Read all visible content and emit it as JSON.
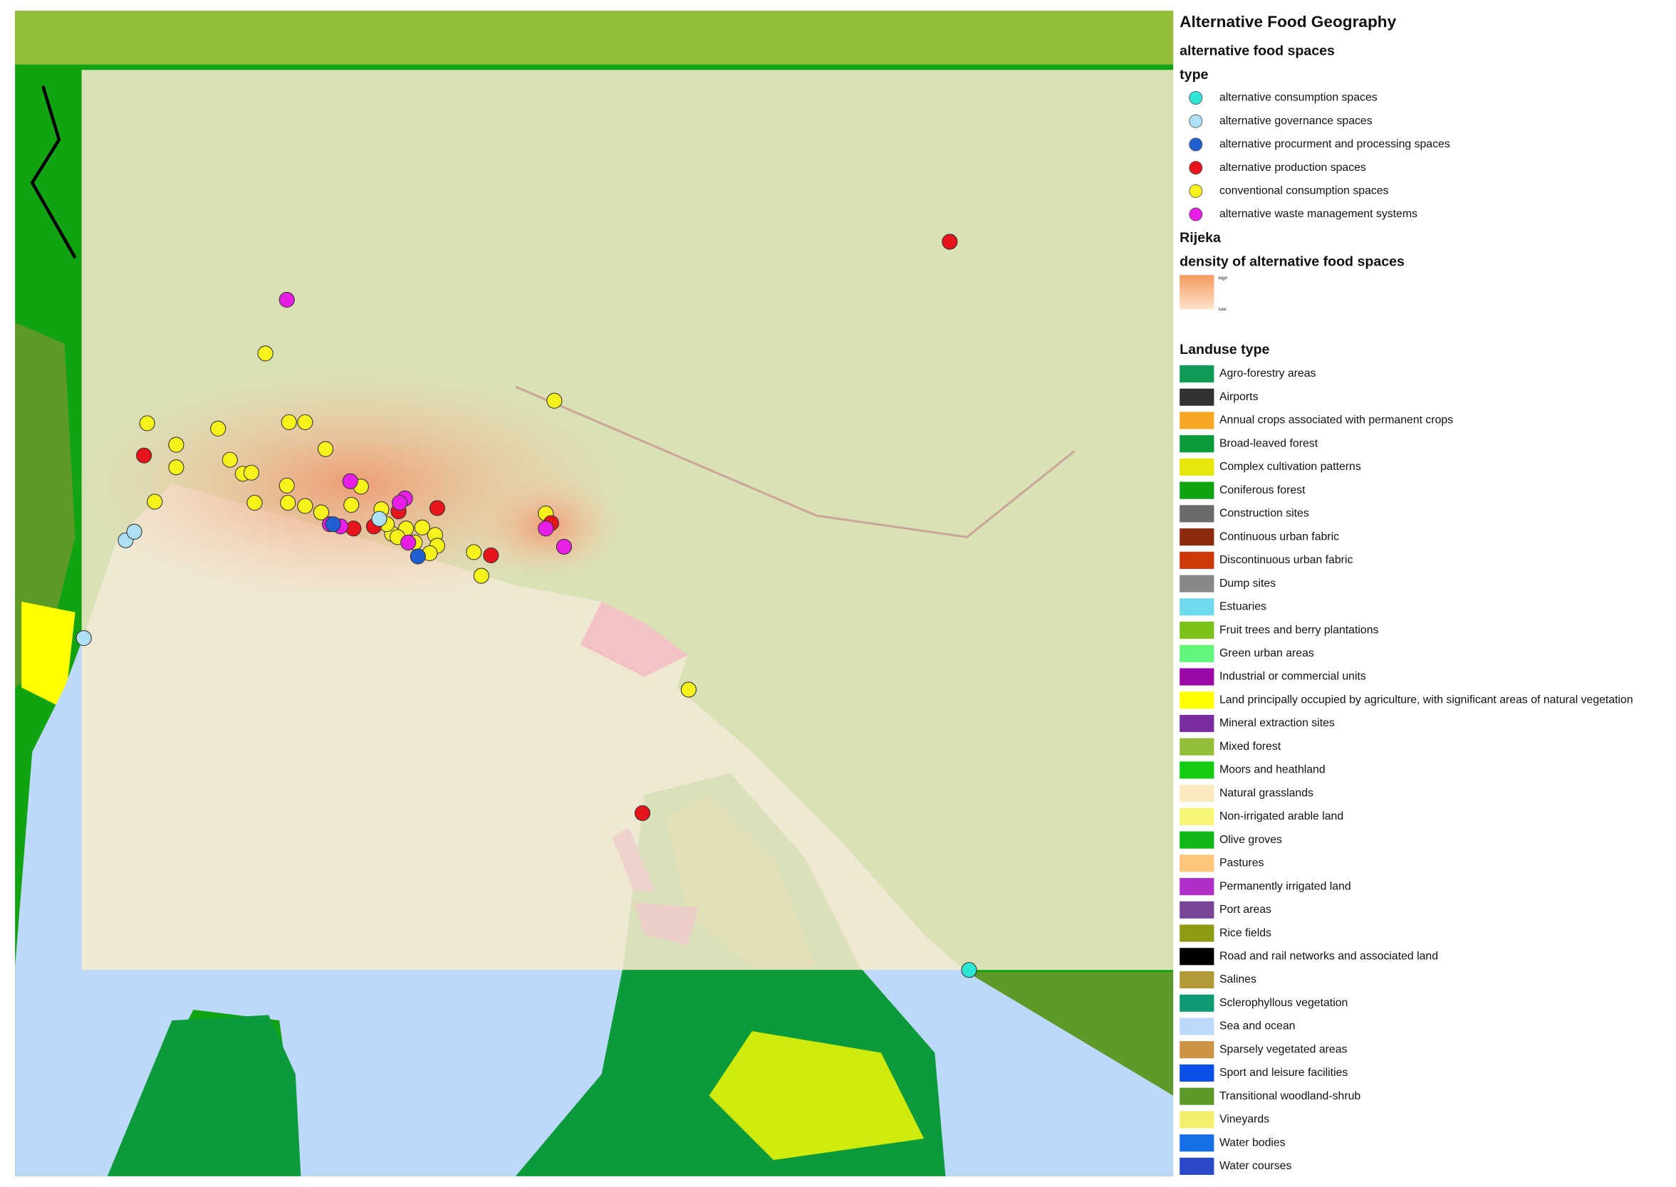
{
  "legend": {
    "title": "Alternative Food Geography",
    "points": {
      "title": "alternative food spaces",
      "field": "type",
      "items": [
        {
          "label": "alternative consumption spaces",
          "color": "#2ee6d6"
        },
        {
          "label": "alternative governance spaces",
          "color": "#aee0f5"
        },
        {
          "label": "alternative procurment and processing spaces",
          "color": "#1f5fd0"
        },
        {
          "label": "alternative production spaces",
          "color": "#e8141b"
        },
        {
          "label": "conventional consumption spaces",
          "color": "#f7f21a"
        },
        {
          "label": "alternative waste management systems",
          "color": "#e61ee6"
        }
      ]
    },
    "density": {
      "group": "Rijeka",
      "title": "density of alternative food spaces",
      "high": "High",
      "low": "Low"
    },
    "landuse": {
      "title": "Landuse type",
      "items": [
        {
          "label": "Agro-forestry areas",
          "color": "#0f9a57"
        },
        {
          "label": "Airports",
          "color": "#333333"
        },
        {
          "label": "Annual crops associated with permanent crops",
          "color": "#f5a623"
        },
        {
          "label": "Broad-leaved forest",
          "color": "#0c9a3a"
        },
        {
          "label": "Complex cultivation patterns",
          "color": "#e6e60a"
        },
        {
          "label": "Coniferous forest",
          "color": "#12a312"
        },
        {
          "label": "Construction sites",
          "color": "#6b6b6b"
        },
        {
          "label": "Continuous urban fabric",
          "color": "#8b2a0f"
        },
        {
          "label": "Discontinuous urban fabric",
          "color": "#cc3a0a"
        },
        {
          "label": "Dump sites",
          "color": "#888888"
        },
        {
          "label": "Estuaries",
          "color": "#6fd9ec"
        },
        {
          "label": "Fruit trees and berry plantations",
          "color": "#7dc21a"
        },
        {
          "label": "Green urban areas",
          "color": "#63f57a"
        },
        {
          "label": "Industrial or commercial units",
          "color": "#9b0aa8"
        },
        {
          "label": "Land principally occupied by agriculture, with significant areas of natural vegetation",
          "color": "#ffff00"
        },
        {
          "label": "Mineral extraction sites",
          "color": "#7a2d9e"
        },
        {
          "label": "Mixed forest",
          "color": "#94be3a"
        },
        {
          "label": "Moors and heathland",
          "color": "#14cc14"
        },
        {
          "label": "Natural grasslands",
          "color": "#fbe9c0"
        },
        {
          "label": "Non-irrigated arable land",
          "color": "#f8f676"
        },
        {
          "label": "Olive groves",
          "color": "#10b818"
        },
        {
          "label": "Pastures",
          "color": "#fcc57a"
        },
        {
          "label": "Permanently irrigated land",
          "color": "#b02ec9"
        },
        {
          "label": "Port areas",
          "color": "#7a4596"
        },
        {
          "label": "Rice fields",
          "color": "#8e9a12"
        },
        {
          "label": "Road and rail networks and associated land",
          "color": "#000000"
        },
        {
          "label": "Salines",
          "color": "#b09a35"
        },
        {
          "label": "Sclerophyllous vegetation",
          "color": "#0f9a74"
        },
        {
          "label": "Sea and ocean",
          "color": "#bcd8fb"
        },
        {
          "label": "Sparsely vegetated areas",
          "color": "#cc9444"
        },
        {
          "label": "Sport and leisure facilities",
          "color": "#0a4fe6"
        },
        {
          "label": "Transitional woodland-shrub",
          "color": "#5e9a2a"
        },
        {
          "label": "Vineyards",
          "color": "#f2ef6e"
        },
        {
          "label": "Water bodies",
          "color": "#1570e8"
        },
        {
          "label": "Water courses",
          "color": "#2a49c8"
        }
      ]
    }
  }
}
